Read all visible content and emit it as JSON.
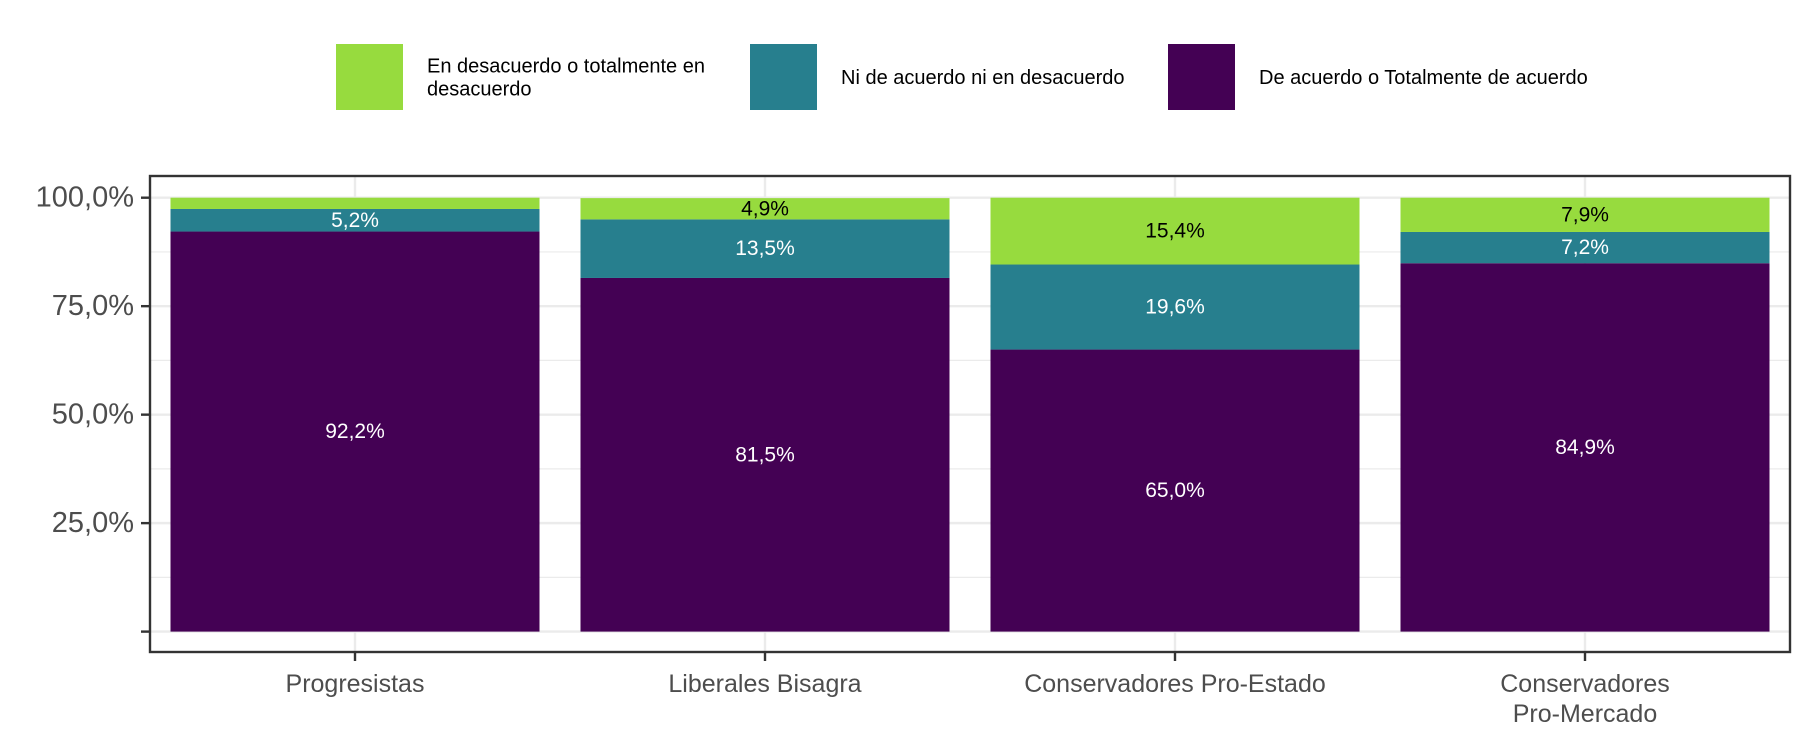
{
  "chart_data": {
    "type": "bar",
    "stacked": true,
    "categories": [
      "Progresistas",
      "Liberales Bisagra",
      "Conservadores Pro-Estado",
      "Conservadores\nPro-Mercado"
    ],
    "series": [
      {
        "name": "De acuerdo o Totalmente de acuerdo",
        "color": "#440154",
        "label_color": "#ffffff",
        "values": [
          92.2,
          81.5,
          65.0,
          84.9
        ],
        "labels": [
          "92,2%",
          "81,5%",
          "65,0%",
          "84,9%"
        ]
      },
      {
        "name": "Ni de acuerdo ni en desacuerdo",
        "color": "#277F8E",
        "label_color": "#ffffff",
        "values": [
          5.2,
          13.5,
          19.6,
          7.2
        ],
        "labels": [
          "5,2%",
          "13,5%",
          "19,6%",
          "7,2%"
        ]
      },
      {
        "name": "En desacuerdo o totalmente en\ndesacuerdo",
        "color": "#97DB3E",
        "label_color": "#000000",
        "values": [
          2.6,
          4.9,
          15.4,
          7.9
        ],
        "labels": [
          "",
          "4,9%",
          "15,4%",
          "7,9%"
        ]
      }
    ],
    "legend_order": [
      2,
      1,
      0
    ],
    "legend_position": "top",
    "y_ticks": [
      {
        "value": 0,
        "label": ""
      },
      {
        "value": 25,
        "label": "25,0%"
      },
      {
        "value": 50,
        "label": "50,0%"
      },
      {
        "value": 75,
        "label": "75,0%"
      },
      {
        "value": 100,
        "label": "100,0%"
      }
    ],
    "ylim": [
      -4.7,
      105
    ],
    "grid": true,
    "title": "",
    "xlabel": "",
    "ylabel": ""
  }
}
